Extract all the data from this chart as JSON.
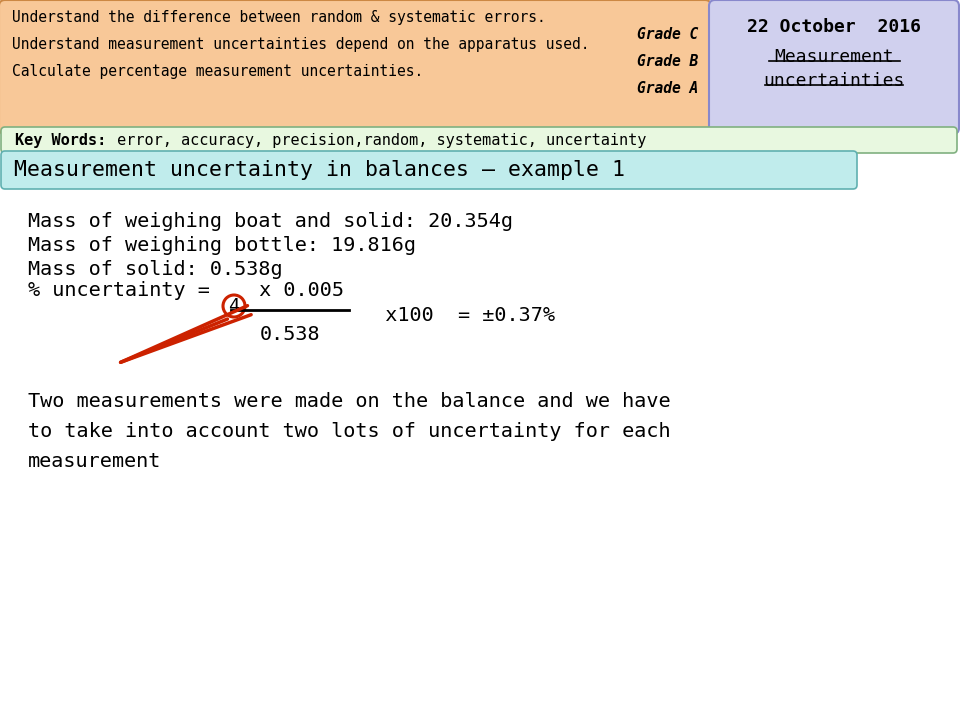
{
  "bg_color": "#ffffff",
  "header_left_facecolor": "#f8c898",
  "header_left_edgecolor": "#cc8844",
  "header_right_facecolor": "#d0d0ee",
  "header_right_edgecolor": "#8888cc",
  "keywords_facecolor": "#e8f8e0",
  "keywords_edgecolor": "#80b080",
  "title_facecolor": "#c0ecec",
  "title_edgecolor": "#60b0b0",
  "date_text": "22 October  2016",
  "objective1": "Understand the difference between random & systematic errors.",
  "grade1": "Grade C",
  "objective2": "Understand measurement uncertainties depend on the apparatus used.",
  "grade2": "Grade B",
  "objective3": "Calculate percentage measurement uncertainties.",
  "grade3": "Grade A",
  "keywords_label": "Key Words:",
  "keywords_content": " error, accuracy, precision,random, systematic, uncertainty",
  "section_title": "Measurement uncertainty in balances – example 1",
  "mass1": "Mass of weighing boat and solid: 20.354g",
  "mass2": "Mass of weighing bottle: 19.816g",
  "mass3": "Mass of solid: 0.538g",
  "explanation": "Two measurements were made on the balance and we have\nto take into account two lots of uncertainty for each\nmeasurement",
  "arrow_color": "#cc2200",
  "circle_color": "#cc2200"
}
